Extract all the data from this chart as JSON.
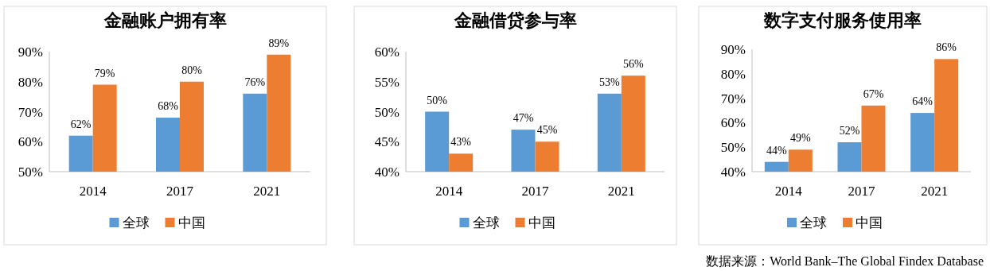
{
  "chart_data": [
    {
      "type": "bar",
      "title": "金融账户拥有率",
      "categories": [
        "2014",
        "2017",
        "2021"
      ],
      "ylim": [
        50,
        90
      ],
      "yticks": [
        {
          "value": 50,
          "label": "50%"
        },
        {
          "value": 60,
          "label": "60%"
        },
        {
          "value": 70,
          "label": "70%"
        },
        {
          "value": 80,
          "label": "80%"
        },
        {
          "value": 90,
          "label": "90%"
        }
      ],
      "legend": "bottom",
      "series": [
        {
          "name": "全球",
          "color": "#5b9bd5",
          "values": [
            62,
            68,
            76
          ],
          "value_labels": [
            "62%",
            "68%",
            "76%"
          ]
        },
        {
          "name": "中国",
          "color": "#ed7d31",
          "values": [
            79,
            80,
            89
          ],
          "value_labels": [
            "79%",
            "80%",
            "89%"
          ]
        }
      ]
    },
    {
      "type": "bar",
      "title": "金融借贷参与率",
      "categories": [
        "2014",
        "2017",
        "2021"
      ],
      "ylim": [
        40,
        60
      ],
      "yticks": [
        {
          "value": 40,
          "label": "40%"
        },
        {
          "value": 45,
          "label": "45%"
        },
        {
          "value": 50,
          "label": "50%"
        },
        {
          "value": 55,
          "label": "55%"
        },
        {
          "value": 60,
          "label": "60%"
        }
      ],
      "legend": "bottom",
      "series": [
        {
          "name": "全球",
          "color": "#5b9bd5",
          "values": [
            50,
            47,
            53
          ],
          "value_labels": [
            "50%",
            "47%",
            "53%"
          ]
        },
        {
          "name": "中国",
          "color": "#ed7d31",
          "values": [
            43,
            45,
            56
          ],
          "value_labels": [
            "43%",
            "45%",
            "56%"
          ]
        }
      ]
    },
    {
      "type": "bar",
      "title": "数字支付服务使用率",
      "categories": [
        "2014",
        "2017",
        "2021"
      ],
      "ylim": [
        40,
        90
      ],
      "yticks": [
        {
          "value": 40,
          "label": "40%"
        },
        {
          "value": 50,
          "label": "50%"
        },
        {
          "value": 60,
          "label": "60%"
        },
        {
          "value": 70,
          "label": "70%"
        },
        {
          "value": 80,
          "label": "80%"
        },
        {
          "value": 90,
          "label": "90%"
        }
      ],
      "legend": "bottom",
      "annotations": [
        "数据来源：World Bank–The Global Findex Database"
      ],
      "series": [
        {
          "name": "全球",
          "color": "#5b9bd5",
          "values": [
            44,
            52,
            64
          ],
          "value_labels": [
            "44%",
            "52%",
            "64%"
          ]
        },
        {
          "name": "中国",
          "color": "#ed7d31",
          "values": [
            49,
            67,
            86
          ],
          "value_labels": [
            "49%",
            "67%",
            "86%"
          ]
        }
      ]
    }
  ]
}
